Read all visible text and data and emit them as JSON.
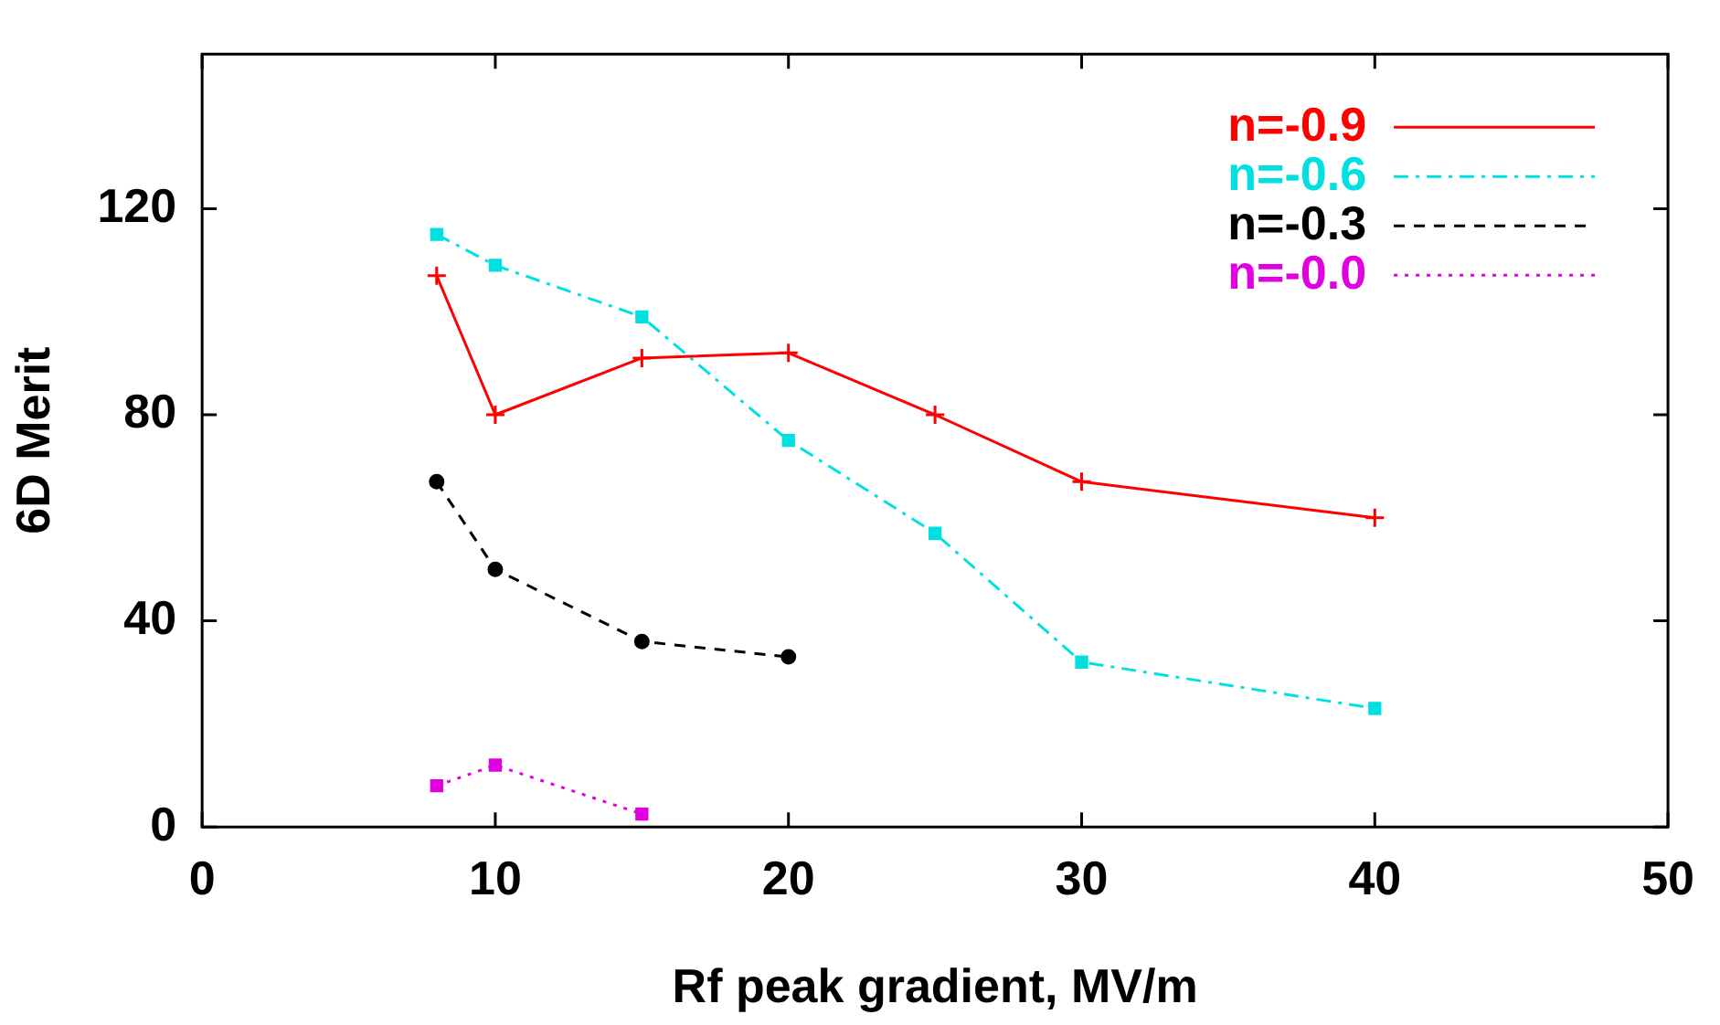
{
  "chart_data": {
    "type": "line",
    "xlabel": "Rf peak gradient, MV/m",
    "ylabel": "6D Merit",
    "xlim": [
      0,
      50
    ],
    "xticks": [
      0,
      10,
      20,
      30,
      40,
      50
    ],
    "ylim": [
      0,
      150
    ],
    "yticks": [
      0,
      40,
      80,
      120
    ],
    "grid": false,
    "legend": "top right",
    "series": [
      {
        "name": "n=-0.9",
        "color": "#ff0000",
        "marker": "cross",
        "line_style": "solid",
        "x": [
          8,
          10,
          15,
          20,
          25,
          30,
          40
        ],
        "values": [
          107,
          80,
          91,
          92,
          80,
          67,
          60
        ]
      },
      {
        "name": "n=-0.6",
        "color": "#00e0e0",
        "marker": "square",
        "line_style": "dashdot",
        "x": [
          8,
          10,
          15,
          20,
          25,
          30,
          40
        ],
        "values": [
          115,
          109,
          99,
          75,
          57,
          32,
          23
        ]
      },
      {
        "name": "n=-0.3",
        "color": "#000000",
        "marker": "circle",
        "line_style": "dashed",
        "x": [
          8,
          10,
          15,
          20
        ],
        "values": [
          67,
          50,
          36,
          33
        ]
      },
      {
        "name": "n=-0.0",
        "color": "#e000e0",
        "marker": "square",
        "line_style": "dotted",
        "x": [
          8,
          10,
          15
        ],
        "values": [
          8,
          12,
          2.5
        ]
      }
    ]
  }
}
